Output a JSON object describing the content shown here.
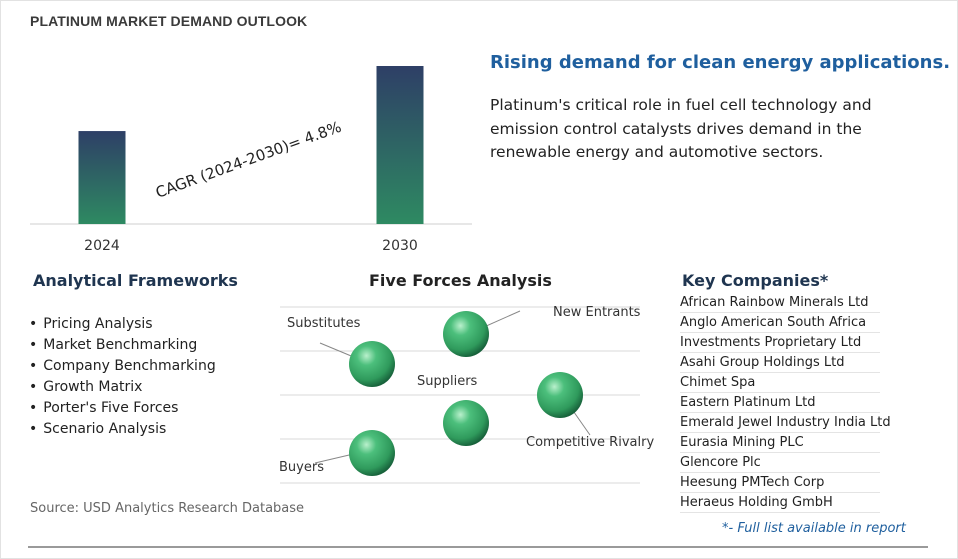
{
  "header": {
    "title": "PLATINUM MARKET DEMAND OUTLOOK"
  },
  "chart_data": {
    "type": "bar",
    "categories": [
      "2024",
      "2030"
    ],
    "values": [
      1.0,
      1.7
    ],
    "annotation": "CAGR (2024-2030)=  4.8%",
    "colors": {
      "bar_top": "#2e3f66",
      "bar_bottom": "#2e8a62"
    }
  },
  "headline": {
    "title": "Rising demand for clean energy applications.",
    "body": "Platinum's critical role in fuel cell technology and emission control catalysts drives demand in the renewable energy and automotive sectors."
  },
  "frameworks": {
    "title": "Analytical Frameworks",
    "items": [
      "Pricing Analysis",
      "Market Benchmarking",
      "Company Benchmarking",
      "Growth Matrix",
      "Porter's Five Forces",
      "Scenario Analysis"
    ]
  },
  "five_forces": {
    "title": "Five Forces Analysis",
    "labels": {
      "substitutes": "Substitutes",
      "new_entrants": "New Entrants",
      "suppliers": "Suppliers",
      "competitive_rivalry": "Competitive Rivalry",
      "buyers": "Buyers"
    },
    "colors": {
      "sphere": "#2f9a5c"
    }
  },
  "companies": {
    "title": "Key Companies*",
    "items": [
      "African Rainbow Minerals Ltd",
      "Anglo American South Africa",
      "Investments Proprietary Ltd",
      "Asahi Group Holdings Ltd",
      "Chimet Spa",
      "Eastern Platinum Ltd",
      "Emerald Jewel Industry India Ltd",
      "Eurasia Mining PLC",
      "Glencore Plc",
      "Heesung PMTech Corp",
      "Heraeus Holding GmbH"
    ],
    "note": "*- Full list available in report"
  },
  "footer": {
    "source": "Source: USD Analytics Research Database"
  }
}
